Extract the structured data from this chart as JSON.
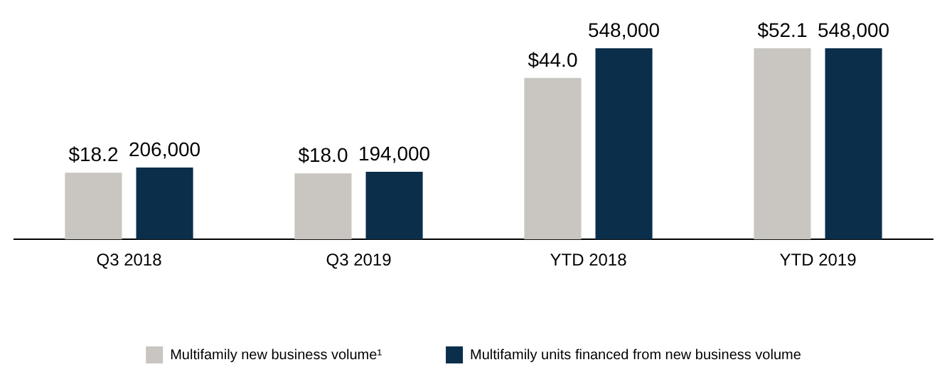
{
  "chart_data": {
    "type": "bar",
    "categories": [
      "Q3 2018",
      "Q3 2019",
      "YTD 2018",
      "YTD 2019"
    ],
    "series": [
      {
        "name": "Multifamily new business volume¹",
        "color": "#c9c6c1",
        "values": [
          18.2,
          18.0,
          44.0,
          52.1
        ],
        "value_labels": [
          "$18.2",
          "$18.0",
          "$44.0",
          "$52.1"
        ]
      },
      {
        "name": "Multifamily units financed from new business volume",
        "color": "#0b2e4b",
        "axis": "y2",
        "values": [
          206000,
          194000,
          548000,
          548000
        ],
        "value_labels": [
          "206,000",
          "194,000",
          "548,000",
          "548,000"
        ]
      }
    ],
    "legend": "bottom"
  }
}
